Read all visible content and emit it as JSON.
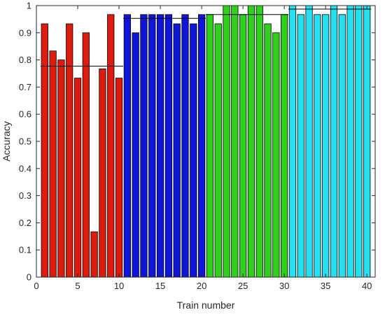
{
  "chart_data": {
    "type": "bar",
    "xlabel": "Train number",
    "ylabel": "Accuracy",
    "xlim": [
      0,
      41
    ],
    "ylim": [
      0,
      1
    ],
    "xticks": [
      0,
      5,
      10,
      15,
      20,
      25,
      30,
      35,
      40
    ],
    "yticks": [
      0,
      0.1,
      0.2,
      0.3,
      0.4,
      0.5,
      0.6,
      0.7,
      0.8,
      0.9,
      1
    ],
    "grid": false,
    "box": true,
    "series": [
      {
        "color": "#dd1c0f",
        "x": [
          1,
          2,
          3,
          4,
          5,
          6,
          7,
          8,
          9,
          10
        ],
        "values": [
          0.933,
          0.833,
          0.8,
          0.933,
          0.733,
          0.9,
          0.167,
          0.767,
          0.967,
          0.733
        ],
        "mean": 0.777
      },
      {
        "color": "#0f16d9",
        "x": [
          11,
          12,
          13,
          14,
          15,
          16,
          17,
          18,
          19,
          20
        ],
        "values": [
          0.967,
          0.9,
          0.967,
          0.967,
          0.967,
          0.967,
          0.933,
          0.967,
          0.933,
          0.967
        ],
        "mean": 0.953
      },
      {
        "color": "#2fd11c",
        "x": [
          21,
          22,
          23,
          24,
          25,
          26,
          27,
          28,
          29,
          30
        ],
        "values": [
          0.967,
          0.933,
          1.0,
          1.0,
          0.967,
          1.0,
          1.0,
          0.933,
          0.9,
          0.967
        ],
        "mean": 0.967
      },
      {
        "color": "#25e0f0",
        "x": [
          31,
          32,
          33,
          34,
          35,
          36,
          37,
          38,
          39,
          40
        ],
        "values": [
          1.0,
          0.967,
          1.0,
          0.967,
          0.967,
          1.0,
          0.967,
          1.0,
          1.0,
          1.0
        ],
        "mean": 0.987
      }
    ]
  }
}
